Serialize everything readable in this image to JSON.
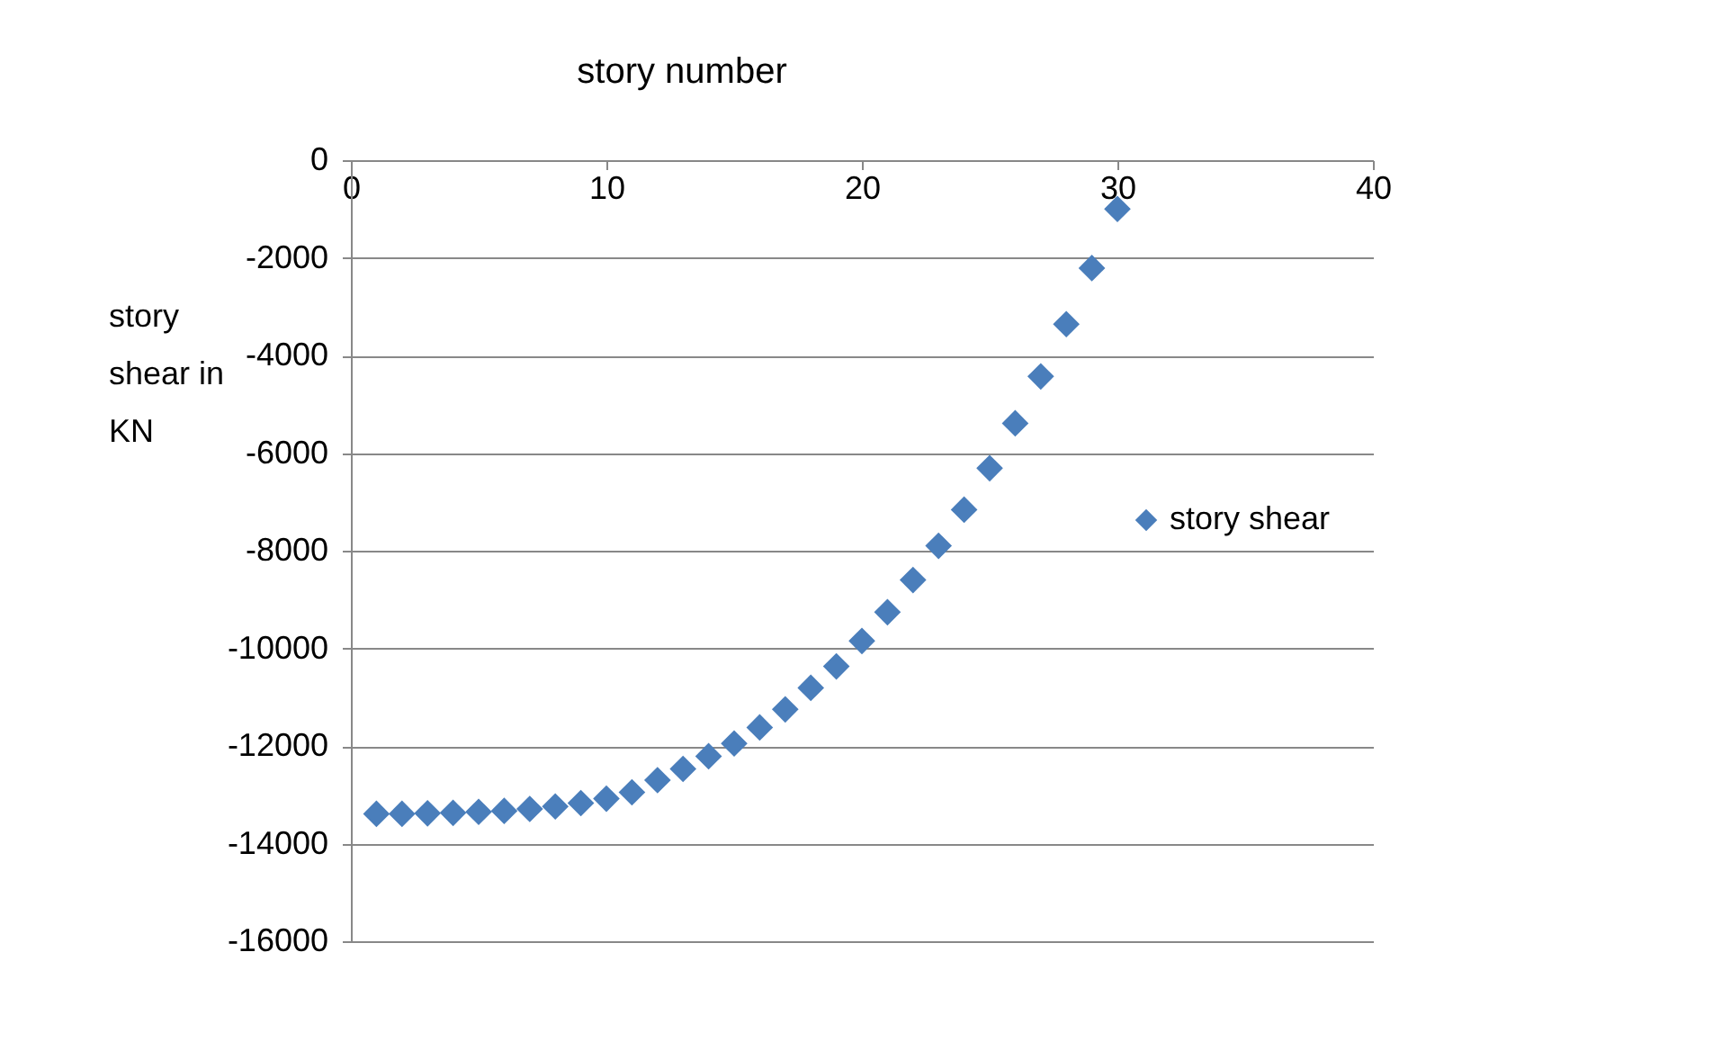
{
  "chart_data": {
    "type": "scatter",
    "title": "story number",
    "ylabel": "story shear in KN",
    "x": [
      1,
      2,
      3,
      4,
      5,
      6,
      7,
      8,
      9,
      10,
      11,
      12,
      13,
      14,
      15,
      16,
      17,
      18,
      19,
      20,
      21,
      22,
      23,
      24,
      25,
      26,
      27,
      28,
      29,
      30
    ],
    "series": [
      {
        "name": "story shear",
        "color": "#4a7ebb",
        "values": [
          -13390,
          -13390,
          -13380,
          -13370,
          -13350,
          -13330,
          -13290,
          -13240,
          -13170,
          -13080,
          -12950,
          -12700,
          -12470,
          -12210,
          -11950,
          -11620,
          -11250,
          -10810,
          -10370,
          -9850,
          -9260,
          -8600,
          -7900,
          -7160,
          -6310,
          -5390,
          -4430,
          -3360,
          -2210,
          -1000
        ]
      }
    ],
    "xlim": [
      0,
      40
    ],
    "xticks": [
      0,
      10,
      20,
      30,
      40
    ],
    "ylim": [
      -16000,
      0
    ],
    "yticks": [
      -16000,
      -14000,
      -12000,
      -10000,
      -8000,
      -6000,
      -4000,
      -2000,
      0
    ],
    "grid": "y",
    "legend": "right",
    "marker": "diamond"
  }
}
